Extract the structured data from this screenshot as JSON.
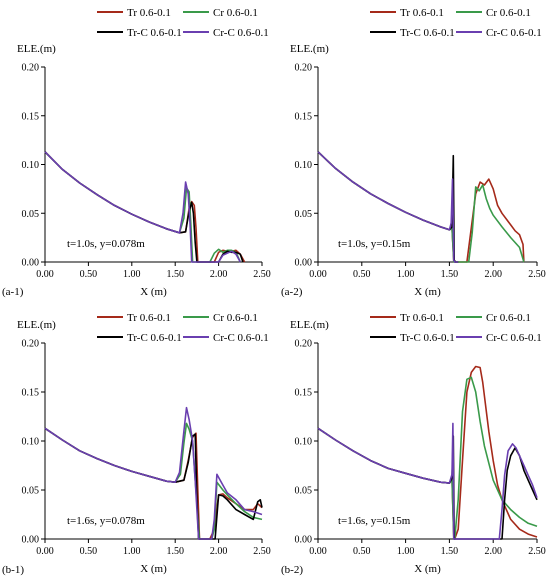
{
  "chart_data": [
    {
      "id": "a-1",
      "type": "line",
      "panel_label": "(a-1)",
      "ylabel": "ELE.(m)",
      "xlabel": "X (m)",
      "annotation": "t=1.0s, y=0.078m",
      "xlim": [
        0,
        2.5
      ],
      "ylim": [
        0,
        0.2
      ],
      "x_ticks": [
        "0.00",
        "0.50",
        "1.00",
        "1.50",
        "2.00",
        "2.50"
      ],
      "y_ticks": [
        "0.00",
        "0.05",
        "0.10",
        "0.15",
        "0.20"
      ],
      "grid": false,
      "legend_placement": "top",
      "series": [
        {
          "name": "Tr 0.6-0.1",
          "color": "#a52a1a",
          "x": [
            0,
            0.2,
            0.4,
            0.6,
            0.8,
            1.0,
            1.2,
            1.4,
            1.55,
            1.62,
            1.66,
            1.69,
            1.72,
            1.74,
            1.76,
            1.8,
            1.9,
            1.95,
            2.0,
            2.05,
            2.1,
            2.15,
            2.2,
            2.25,
            2.3
          ],
          "y": [
            0.113,
            0.095,
            0.081,
            0.069,
            0.058,
            0.049,
            0.041,
            0.034,
            0.03,
            0.031,
            0.055,
            0.062,
            0.058,
            0.035,
            0.0,
            0.0,
            0.0,
            0.0,
            0.01,
            0.012,
            0.011,
            0.011,
            0.012,
            0.008,
            0.0
          ]
        },
        {
          "name": "Cr 0.6-0.1",
          "color": "#3a9a4a",
          "x": [
            0,
            0.2,
            0.4,
            0.6,
            0.8,
            1.0,
            1.2,
            1.4,
            1.55,
            1.6,
            1.63,
            1.66,
            1.68,
            1.7,
            1.75,
            1.9,
            1.95,
            2.0,
            2.05,
            2.1,
            2.15,
            2.2,
            2.25
          ],
          "y": [
            0.113,
            0.095,
            0.081,
            0.069,
            0.058,
            0.049,
            0.041,
            0.034,
            0.03,
            0.045,
            0.076,
            0.072,
            0.04,
            0.0,
            0.0,
            0.0,
            0.009,
            0.013,
            0.01,
            0.012,
            0.012,
            0.01,
            0.0
          ]
        },
        {
          "name": "Tr-C 0.6-0.1",
          "color": "#000000",
          "x": [
            0,
            0.2,
            0.4,
            0.6,
            0.8,
            1.0,
            1.2,
            1.4,
            1.55,
            1.62,
            1.66,
            1.69,
            1.71,
            1.73,
            1.75,
            1.9,
            2.0,
            2.05,
            2.1,
            2.15,
            2.2,
            2.25,
            2.28
          ],
          "y": [
            0.113,
            0.095,
            0.081,
            0.069,
            0.058,
            0.049,
            0.041,
            0.034,
            0.03,
            0.031,
            0.052,
            0.061,
            0.05,
            0.02,
            0.0,
            0.0,
            0.0,
            0.008,
            0.011,
            0.01,
            0.01,
            0.008,
            0.0
          ]
        },
        {
          "name": "Cr-C 0.6-0.1",
          "color": "#6a3fb0",
          "x": [
            0,
            0.2,
            0.4,
            0.6,
            0.8,
            1.0,
            1.2,
            1.4,
            1.55,
            1.59,
            1.62,
            1.65,
            1.67,
            1.69,
            1.72,
            2.0,
            2.05,
            2.1,
            2.15,
            2.2,
            2.25
          ],
          "y": [
            0.113,
            0.095,
            0.081,
            0.069,
            0.058,
            0.049,
            0.041,
            0.034,
            0.03,
            0.05,
            0.082,
            0.07,
            0.04,
            0.0,
            0.0,
            0.0,
            0.007,
            0.009,
            0.011,
            0.008,
            0.0
          ]
        }
      ]
    },
    {
      "id": "a-2",
      "type": "line",
      "panel_label": "(a-2)",
      "ylabel": "ELE.(m)",
      "xlabel": "X (m)",
      "annotation": "t=1.0s, y=0.15m",
      "xlim": [
        0,
        2.5
      ],
      "ylim": [
        0,
        0.2
      ],
      "x_ticks": [
        "0.00",
        "0.50",
        "1.00",
        "1.50",
        "2.00",
        "2.50"
      ],
      "y_ticks": [
        "0.00",
        "0.05",
        "0.10",
        "0.15",
        "0.20"
      ],
      "grid": false,
      "legend_placement": "top",
      "series": [
        {
          "name": "Tr 0.6-0.1",
          "color": "#a52a1a",
          "x": [
            0,
            0.2,
            0.4,
            0.6,
            0.8,
            1.0,
            1.2,
            1.4,
            1.5,
            1.53,
            1.55,
            1.56,
            1.6,
            1.7,
            1.75,
            1.8,
            1.85,
            1.9,
            1.95,
            2.0,
            2.05,
            2.1,
            2.2,
            2.25,
            2.3,
            2.34,
            2.35
          ],
          "y": [
            0.113,
            0.096,
            0.082,
            0.07,
            0.06,
            0.051,
            0.043,
            0.036,
            0.033,
            0.035,
            0.0,
            0.0,
            0.0,
            0.0,
            0.035,
            0.07,
            0.082,
            0.079,
            0.085,
            0.075,
            0.058,
            0.05,
            0.038,
            0.032,
            0.028,
            0.018,
            0.0
          ]
        },
        {
          "name": "Cr 0.6-0.1",
          "color": "#3a9a4a",
          "x": [
            0,
            0.2,
            0.4,
            0.6,
            0.8,
            1.0,
            1.2,
            1.4,
            1.5,
            1.53,
            1.55,
            1.56,
            1.65,
            1.72,
            1.76,
            1.8,
            1.84,
            1.88,
            1.92,
            1.96,
            2.0,
            2.1,
            2.2,
            2.25,
            2.3,
            2.35
          ],
          "y": [
            0.113,
            0.096,
            0.082,
            0.07,
            0.06,
            0.051,
            0.043,
            0.036,
            0.033,
            0.035,
            0.0,
            0.0,
            0.0,
            0.0,
            0.03,
            0.077,
            0.073,
            0.079,
            0.065,
            0.055,
            0.048,
            0.036,
            0.025,
            0.02,
            0.015,
            0.0
          ]
        },
        {
          "name": "Tr-C 0.6-0.1",
          "color": "#000000",
          "x": [
            0,
            0.2,
            0.4,
            0.6,
            0.8,
            1.0,
            1.2,
            1.4,
            1.5,
            1.53,
            1.545,
            1.555,
            1.57,
            1.6
          ],
          "y": [
            0.113,
            0.096,
            0.082,
            0.07,
            0.06,
            0.051,
            0.043,
            0.036,
            0.033,
            0.036,
            0.109,
            0.002,
            0.0,
            0.0
          ]
        },
        {
          "name": "Cr-C 0.6-0.1",
          "color": "#6a3fb0",
          "x": [
            0,
            0.2,
            0.4,
            0.6,
            0.8,
            1.0,
            1.2,
            1.4,
            1.5,
            1.52,
            1.535,
            1.55,
            1.56,
            1.6
          ],
          "y": [
            0.113,
            0.096,
            0.082,
            0.07,
            0.06,
            0.051,
            0.043,
            0.036,
            0.033,
            0.04,
            0.085,
            0.002,
            0.0,
            0.0
          ]
        }
      ]
    },
    {
      "id": "b-1",
      "type": "line",
      "panel_label": "(b-1)",
      "ylabel": "ELE.(m)",
      "xlabel": "X (m)",
      "annotation": "t=1.6s, y=0.078m",
      "xlim": [
        0,
        2.5
      ],
      "ylim": [
        0,
        0.2
      ],
      "x_ticks": [
        "0.00",
        "0.50",
        "1.00",
        "1.50",
        "2.00",
        "2.50"
      ],
      "y_ticks": [
        "0.00",
        "0.05",
        "0.10",
        "0.15",
        "0.20"
      ],
      "grid": false,
      "legend_placement": "top",
      "series": [
        {
          "name": "Tr 0.6-0.1",
          "color": "#a52a1a",
          "x": [
            0,
            0.2,
            0.4,
            0.6,
            0.8,
            1.0,
            1.2,
            1.4,
            1.5,
            1.6,
            1.65,
            1.7,
            1.74,
            1.76,
            1.78,
            1.9,
            1.95,
            2.0,
            2.05,
            2.1,
            2.2,
            2.3,
            2.4,
            2.45,
            2.5
          ],
          "y": [
            0.113,
            0.101,
            0.09,
            0.082,
            0.075,
            0.069,
            0.064,
            0.059,
            0.058,
            0.06,
            0.08,
            0.104,
            0.108,
            0.05,
            0.0,
            0.0,
            0.01,
            0.045,
            0.046,
            0.042,
            0.036,
            0.03,
            0.03,
            0.036,
            0.032
          ]
        },
        {
          "name": "Cr 0.6-0.1",
          "color": "#3a9a4a",
          "x": [
            0,
            0.2,
            0.4,
            0.6,
            0.8,
            1.0,
            1.2,
            1.4,
            1.5,
            1.56,
            1.6,
            1.63,
            1.66,
            1.7,
            1.73,
            1.78,
            1.92,
            1.95,
            1.98,
            2.05,
            2.1,
            2.2,
            2.3,
            2.4,
            2.5
          ],
          "y": [
            0.113,
            0.101,
            0.09,
            0.082,
            0.075,
            0.069,
            0.064,
            0.059,
            0.058,
            0.066,
            0.098,
            0.118,
            0.112,
            0.1,
            0.06,
            0.0,
            0.0,
            0.01,
            0.058,
            0.05,
            0.045,
            0.036,
            0.028,
            0.022,
            0.02
          ]
        },
        {
          "name": "Tr-C 0.6-0.1",
          "color": "#000000",
          "x": [
            0,
            0.2,
            0.4,
            0.6,
            0.8,
            1.0,
            1.2,
            1.4,
            1.5,
            1.6,
            1.65,
            1.7,
            1.73,
            1.75,
            1.77,
            1.9,
            1.96,
            2.0,
            2.05,
            2.1,
            2.2,
            2.3,
            2.4,
            2.45,
            2.48,
            2.5
          ],
          "y": [
            0.113,
            0.101,
            0.09,
            0.082,
            0.075,
            0.069,
            0.064,
            0.059,
            0.058,
            0.06,
            0.078,
            0.105,
            0.107,
            0.04,
            0.0,
            0.0,
            0.0,
            0.045,
            0.044,
            0.04,
            0.03,
            0.025,
            0.02,
            0.038,
            0.04,
            0.032
          ]
        },
        {
          "name": "Cr-C 0.6-0.1",
          "color": "#6a3fb0",
          "x": [
            0,
            0.2,
            0.4,
            0.6,
            0.8,
            1.0,
            1.2,
            1.4,
            1.5,
            1.55,
            1.6,
            1.63,
            1.66,
            1.7,
            1.73,
            1.77,
            1.92,
            1.95,
            1.98,
            2.05,
            2.1,
            2.2,
            2.3,
            2.4,
            2.5
          ],
          "y": [
            0.113,
            0.101,
            0.09,
            0.082,
            0.075,
            0.069,
            0.064,
            0.059,
            0.058,
            0.068,
            0.11,
            0.134,
            0.122,
            0.1,
            0.06,
            0.0,
            0.0,
            0.02,
            0.066,
            0.055,
            0.047,
            0.04,
            0.03,
            0.028,
            0.025
          ]
        }
      ]
    },
    {
      "id": "b-2",
      "type": "line",
      "panel_label": "(b-2)",
      "ylabel": "ELE.(m)",
      "xlabel": "X (m)",
      "annotation": "t=1.6s, y=0.15m",
      "xlim": [
        0,
        2.5
      ],
      "ylim": [
        0,
        0.2
      ],
      "x_ticks": [
        "0.00",
        "0.50",
        "1.00",
        "1.50",
        "2.00",
        "2.50"
      ],
      "y_ticks": [
        "0.00",
        "0.05",
        "0.10",
        "0.15",
        "0.20"
      ],
      "grid": false,
      "legend_placement": "top",
      "series": [
        {
          "name": "Tr 0.6-0.1",
          "color": "#a52a1a",
          "x": [
            0,
            0.2,
            0.4,
            0.6,
            0.8,
            1.0,
            1.2,
            1.4,
            1.5,
            1.53,
            1.55,
            1.56,
            1.6,
            1.65,
            1.7,
            1.75,
            1.8,
            1.85,
            1.88,
            1.95,
            2.0,
            2.05,
            2.1,
            2.15,
            2.2,
            2.3,
            2.4,
            2.5
          ],
          "y": [
            0.113,
            0.101,
            0.09,
            0.08,
            0.072,
            0.067,
            0.062,
            0.058,
            0.057,
            0.062,
            0.0,
            0.0,
            0.01,
            0.08,
            0.15,
            0.17,
            0.176,
            0.175,
            0.16,
            0.11,
            0.08,
            0.055,
            0.04,
            0.03,
            0.02,
            0.01,
            0.005,
            0.002
          ]
        },
        {
          "name": "Cr 0.6-0.1",
          "color": "#3a9a4a",
          "x": [
            0,
            0.2,
            0.4,
            0.6,
            0.8,
            1.0,
            1.2,
            1.4,
            1.5,
            1.53,
            1.55,
            1.56,
            1.6,
            1.65,
            1.7,
            1.75,
            1.8,
            1.85,
            1.9,
            2.0,
            2.1,
            2.2,
            2.3,
            2.4,
            2.5
          ],
          "y": [
            0.113,
            0.101,
            0.09,
            0.08,
            0.072,
            0.067,
            0.062,
            0.058,
            0.057,
            0.06,
            0.0,
            0.0,
            0.04,
            0.13,
            0.163,
            0.165,
            0.15,
            0.12,
            0.095,
            0.06,
            0.04,
            0.03,
            0.022,
            0.016,
            0.013
          ]
        },
        {
          "name": "Tr-C 0.6-0.1",
          "color": "#000000",
          "x": [
            0,
            0.2,
            0.4,
            0.6,
            0.8,
            1.0,
            1.2,
            1.4,
            1.5,
            1.53,
            1.545,
            1.555,
            1.6,
            2.1,
            2.13,
            2.16,
            2.2,
            2.25,
            2.3,
            2.35,
            2.4,
            2.45,
            2.5
          ],
          "y": [
            0.113,
            0.101,
            0.09,
            0.08,
            0.072,
            0.067,
            0.062,
            0.058,
            0.057,
            0.062,
            0.105,
            0.0,
            0.0,
            0.0,
            0.04,
            0.07,
            0.085,
            0.093,
            0.085,
            0.07,
            0.06,
            0.05,
            0.04
          ]
        },
        {
          "name": "Cr-C 0.6-0.1",
          "color": "#6a3fb0",
          "x": [
            0,
            0.2,
            0.4,
            0.6,
            0.8,
            1.0,
            1.2,
            1.4,
            1.5,
            1.53,
            1.54,
            1.55,
            1.6,
            2.07,
            2.1,
            2.13,
            2.17,
            2.22,
            2.26,
            2.3,
            2.35,
            2.4,
            2.45,
            2.5
          ],
          "y": [
            0.113,
            0.101,
            0.09,
            0.08,
            0.072,
            0.067,
            0.062,
            0.058,
            0.057,
            0.066,
            0.118,
            0.0,
            0.0,
            0.0,
            0.03,
            0.065,
            0.09,
            0.097,
            0.093,
            0.085,
            0.075,
            0.065,
            0.055,
            0.042
          ]
        }
      ]
    }
  ]
}
